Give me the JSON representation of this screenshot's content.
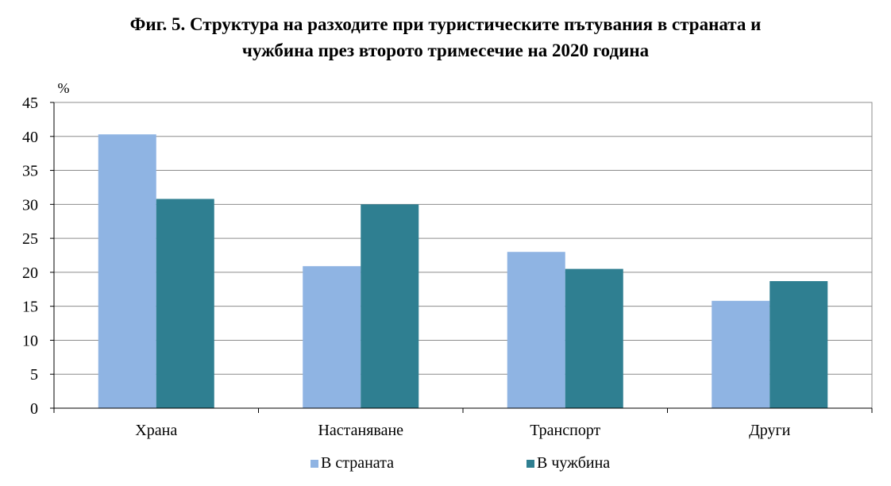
{
  "title_line1": "Фиг. 5. Структура на разходите при туристическите пътувания в страната и",
  "title_line2": "чужбина през второто тримесечие на 2020 година",
  "colors": {
    "series1": "#8fb4e3",
    "series2": "#2f7f91",
    "grid": "#8c8c8c",
    "axis": "#000000"
  },
  "chart_data": {
    "type": "bar",
    "ylabel": "%",
    "ylim": [
      0,
      45
    ],
    "yticks": [
      0,
      5,
      10,
      15,
      20,
      25,
      30,
      35,
      40,
      45
    ],
    "grid": true,
    "legend_position": "bottom",
    "categories": [
      "Храна",
      "Настаняване",
      "Транспорт",
      "Други"
    ],
    "series": [
      {
        "name": "В страната",
        "values": [
          40.3,
          20.9,
          23.0,
          15.8
        ]
      },
      {
        "name": "В чужбина",
        "values": [
          30.8,
          30.0,
          20.5,
          18.7
        ]
      }
    ]
  }
}
